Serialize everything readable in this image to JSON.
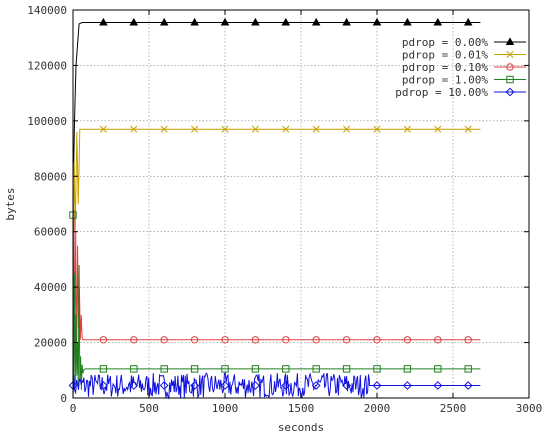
{
  "chart_data": {
    "type": "line",
    "title": "",
    "xlabel": "seconds",
    "ylabel": "bytes",
    "xlim": [
      0,
      3000
    ],
    "ylim": [
      0,
      140000
    ],
    "xticks": [
      0,
      500,
      1000,
      1500,
      2000,
      2500,
      3000
    ],
    "yticks": [
      0,
      20000,
      40000,
      60000,
      80000,
      100000,
      120000,
      140000
    ],
    "grid": true,
    "legend_position": "top-right",
    "series": [
      {
        "name": "pdrop = 0.00%",
        "color": "#000000",
        "marker": "triangle",
        "x": [
          0,
          10,
          20,
          40,
          60,
          200,
          400,
          600,
          800,
          1000,
          1200,
          1400,
          1600,
          1800,
          2000,
          2200,
          2400,
          2600,
          2680
        ],
        "y": [
          70000,
          100000,
          120000,
          135000,
          135500,
          135500,
          135500,
          135500,
          135500,
          135500,
          135500,
          135500,
          135500,
          135500,
          135500,
          135500,
          135500,
          135500,
          135500
        ],
        "marker_x": [
          200,
          400,
          600,
          800,
          1000,
          1200,
          1400,
          1600,
          1800,
          2000,
          2200,
          2400,
          2600
        ]
      },
      {
        "name": "pdrop = 0.01%",
        "color": "#c8a000",
        "marker": "x",
        "x": [
          0,
          8,
          15,
          25,
          35,
          45,
          60,
          200,
          400,
          600,
          800,
          1000,
          1200,
          1400,
          1600,
          1800,
          2000,
          2200,
          2400,
          2600,
          2680
        ],
        "y": [
          50000,
          85000,
          60000,
          96000,
          70000,
          97000,
          97000,
          97000,
          97000,
          97000,
          97000,
          97000,
          97000,
          97000,
          97000,
          97000,
          97000,
          97000,
          97000,
          97000,
          97000
        ],
        "marker_x": [
          200,
          400,
          600,
          800,
          1000,
          1200,
          1400,
          1600,
          1800,
          2000,
          2200,
          2400,
          2600
        ]
      },
      {
        "name": "pdrop = 0.10%",
        "color": "#e04040",
        "marker": "circle",
        "x": [
          0,
          6,
          12,
          18,
          24,
          30,
          36,
          42,
          48,
          54,
          60,
          66,
          72,
          200,
          400,
          600,
          800,
          1000,
          1200,
          1400,
          1600,
          1800,
          2000,
          2200,
          2400,
          2600,
          2680
        ],
        "y": [
          10000,
          68000,
          20000,
          60000,
          12000,
          55000,
          25000,
          40000,
          21000,
          30000,
          22000,
          21000,
          21000,
          21000,
          21000,
          21000,
          21000,
          21000,
          21000,
          21000,
          21000,
          21000,
          21000,
          21000,
          21000,
          21000,
          21000
        ],
        "marker_x": [
          200,
          400,
          600,
          800,
          1000,
          1200,
          1400,
          1600,
          1800,
          2000,
          2200,
          2400,
          2600
        ]
      },
      {
        "name": "pdrop = 1.00%",
        "color": "#208020",
        "marker": "square",
        "x": [
          0,
          5,
          10,
          15,
          20,
          25,
          30,
          35,
          40,
          45,
          50,
          55,
          60,
          65,
          70,
          80,
          200,
          400,
          600,
          800,
          1000,
          1200,
          1400,
          1600,
          1800,
          2000,
          2200,
          2400,
          2600,
          2680
        ],
        "y": [
          66000,
          3000,
          45000,
          5000,
          30000,
          8000,
          20000,
          4000,
          48000,
          6000,
          15000,
          3000,
          12000,
          9000,
          10000,
          10500,
          10500,
          10500,
          10500,
          10500,
          10500,
          10500,
          10500,
          10500,
          10500,
          10500,
          10500,
          10500,
          10500,
          10500
        ],
        "marker_x": [
          0,
          200,
          400,
          600,
          800,
          1000,
          1200,
          1400,
          1600,
          1800,
          2000,
          2200,
          2400,
          2600
        ]
      },
      {
        "name": "pdrop = 10.00%",
        "color": "#1010e0",
        "marker": "diamond",
        "noisy_range": [
          0,
          1950
        ],
        "noise_center": 4500,
        "noise_amplitude": 4500,
        "x": [
          1950,
          2000,
          2200,
          2400,
          2600,
          2680
        ],
        "y": [
          4500,
          4500,
          4500,
          4500,
          4500,
          4500
        ],
        "marker_x": [
          0,
          200,
          400,
          600,
          800,
          1000,
          1200,
          1400,
          1600,
          1800,
          2000,
          2200,
          2400,
          2600
        ]
      }
    ]
  }
}
